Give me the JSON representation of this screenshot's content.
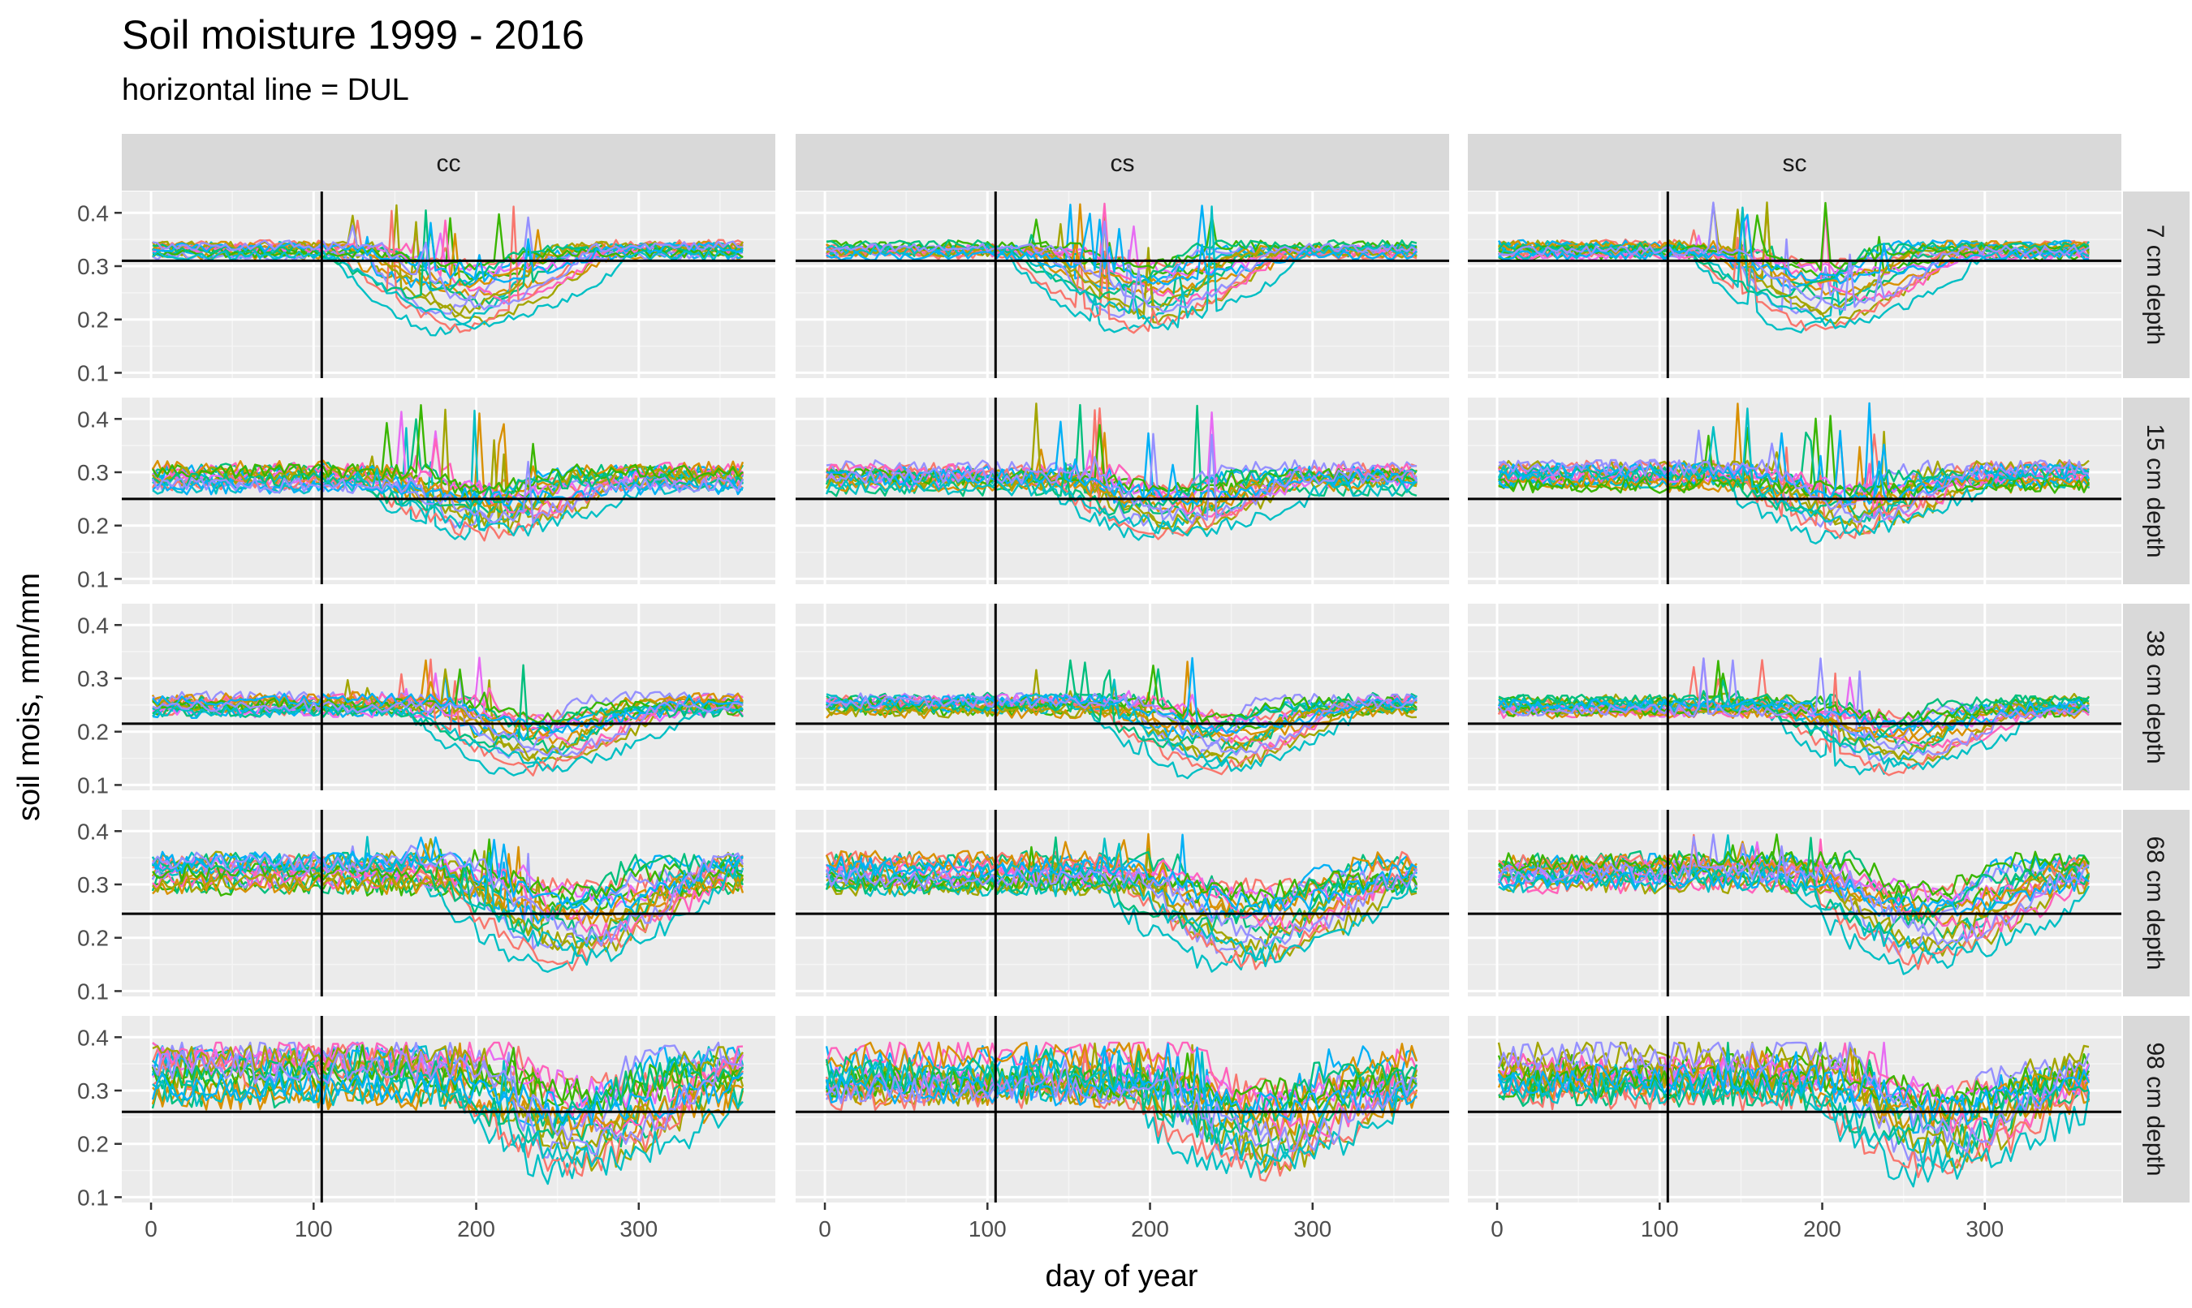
{
  "chart_data": {
    "type": "line",
    "title": "Soil moisture 1999 - 2016",
    "subtitle": "horizontal line = DUL",
    "xlabel": "day of year",
    "ylabel": "soil mois, mm/mm",
    "xlim": [
      -18,
      384
    ],
    "ylim": [
      0.09,
      0.44
    ],
    "x_ticks": [
      0,
      100,
      200,
      300
    ],
    "y_ticks": [
      0.1,
      0.2,
      0.3,
      0.4
    ],
    "x_tick_labels": [
      "0",
      "100",
      "200",
      "300"
    ],
    "y_tick_labels": [
      "0.1",
      "0.2",
      "0.3",
      "0.4"
    ],
    "columns": [
      "cc",
      "cs",
      "sc"
    ],
    "rows": [
      "7 cm depth",
      "15 cm depth",
      "38 cm depth",
      "68 cm depth",
      "98 cm depth"
    ],
    "vertical_line_day": 105,
    "dul_by_depth": [
      0.31,
      0.25,
      0.215,
      0.245,
      0.26
    ],
    "series_colors": [
      "#F8766D",
      "#D89000",
      "#A3A500",
      "#39B600",
      "#00BF7D",
      "#00BFC4",
      "#00B0F6",
      "#9590FF",
      "#E76BF3",
      "#FF62BC"
    ],
    "years_represented": 18,
    "depth_profiles": [
      {
        "depth": "7 cm depth",
        "wet_level": 0.33,
        "spread": 0.012,
        "dry_min": 0.16,
        "peak": 0.42,
        "drydown_days": [
          120,
          290
        ]
      },
      {
        "depth": "15 cm depth",
        "wet_level": 0.29,
        "spread": 0.02,
        "dry_min": 0.17,
        "peak": 0.43,
        "drydown_days": [
          140,
          300
        ]
      },
      {
        "depth": "38 cm depth",
        "wet_level": 0.25,
        "spread": 0.015,
        "dry_min": 0.11,
        "peak": 0.34,
        "drydown_days": [
          170,
          330
        ]
      },
      {
        "depth": "68 cm depth",
        "wet_level": 0.32,
        "spread": 0.025,
        "dry_min": 0.13,
        "peak": 0.395,
        "drydown_days": [
          180,
          360
        ]
      },
      {
        "depth": "98 cm depth",
        "wet_level": 0.33,
        "spread": 0.04,
        "dry_min": 0.13,
        "peak": 0.39,
        "drydown_days": [
          190,
          365
        ]
      }
    ]
  }
}
